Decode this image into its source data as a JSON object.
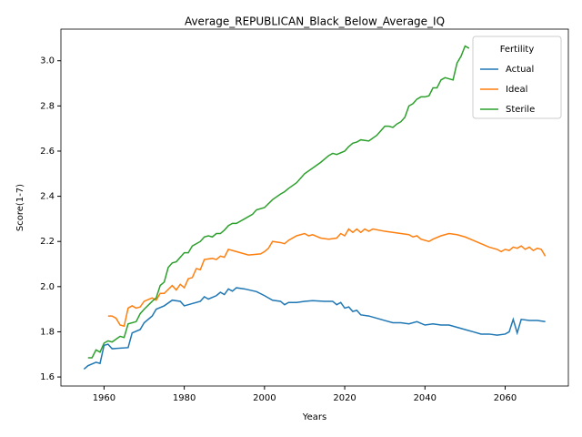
{
  "chart_data": {
    "type": "line",
    "title": "Average_REPUBLICAN_Black_Below_Average_IQ",
    "x_label": "Years",
    "y_label": "Score(1-7)",
    "legend_title": "Fertility",
    "legend": "upper right",
    "grid": false,
    "xlim": [
      1949.25,
      2075.75
    ],
    "xticks": [
      1960,
      1980,
      2000,
      2020,
      2040,
      2060
    ],
    "ylim": [
      1.56,
      3.14
    ],
    "yticks": [
      1.6,
      1.8,
      {
        "value": 2,
        "label": "2.0"
      },
      2.2,
      2.4,
      2.6,
      2.8,
      {
        "value": 3,
        "label": "3.0"
      }
    ],
    "series": [
      {
        "name": "Actual",
        "color": "#1f77b4",
        "x": [
          1955,
          1956,
          1958,
          1959,
          1960,
          1961,
          1962,
          1966,
          1967,
          1969,
          1970,
          1972,
          1973,
          1975,
          1977,
          1979,
          1980,
          1982,
          1984,
          1985,
          1986,
          1988,
          1989,
          1990,
          1991,
          1992,
          1993,
          1995,
          1998,
          2000,
          2002,
          2004,
          2005,
          2006,
          2008,
          2010,
          2012,
          2015,
          2017,
          2018,
          2019,
          2020,
          2021,
          2022,
          2023,
          2024,
          2026,
          2028,
          2030,
          2032,
          2034,
          2036,
          2038,
          2040,
          2042,
          2044,
          2046,
          2048,
          2050,
          2052,
          2054,
          2056,
          2058,
          2060,
          2061,
          2062,
          2063,
          2064,
          2066,
          2068,
          2070
        ],
        "values": [
          1.635,
          1.65,
          1.665,
          1.66,
          1.74,
          1.745,
          1.725,
          1.73,
          1.795,
          1.81,
          1.84,
          1.87,
          1.9,
          1.915,
          1.94,
          1.935,
          1.915,
          1.925,
          1.935,
          1.955,
          1.945,
          1.96,
          1.975,
          1.965,
          1.99,
          1.98,
          1.995,
          1.99,
          1.978,
          1.96,
          1.94,
          1.935,
          1.92,
          1.93,
          1.93,
          1.935,
          1.938,
          1.935,
          1.935,
          1.92,
          1.93,
          1.905,
          1.91,
          1.89,
          1.895,
          1.875,
          1.87,
          1.86,
          1.85,
          1.84,
          1.84,
          1.835,
          1.845,
          1.83,
          1.835,
          1.83,
          1.83,
          1.82,
          1.81,
          1.8,
          1.79,
          1.79,
          1.785,
          1.79,
          1.8,
          1.855,
          1.795,
          1.855,
          1.85,
          1.85,
          1.845
        ]
      },
      {
        "name": "Ideal",
        "color": "#ff7f0e",
        "x": [
          1961,
          1962,
          1963,
          1964,
          1965,
          1966,
          1967,
          1968,
          1969,
          1970,
          1972,
          1973,
          1974,
          1975,
          1977,
          1978,
          1979,
          1980,
          1981,
          1982,
          1983,
          1984,
          1985,
          1987,
          1988,
          1989,
          1990,
          1991,
          1993,
          1996,
          1999,
          2000,
          2001,
          2002,
          2004,
          2005,
          2006,
          2008,
          2010,
          2011,
          2012,
          2014,
          2016,
          2018,
          2019,
          2020,
          2021,
          2022,
          2023,
          2024,
          2025,
          2026,
          2027,
          2030,
          2032,
          2034,
          2036,
          2037,
          2038,
          2039,
          2041,
          2042,
          2044,
          2046,
          2048,
          2050,
          2052,
          2054,
          2056,
          2058,
          2059,
          2060,
          2061,
          2062,
          2063,
          2064,
          2065,
          2066,
          2067,
          2068,
          2069,
          2070
        ],
        "values": [
          1.87,
          1.87,
          1.86,
          1.83,
          1.825,
          1.905,
          1.915,
          1.905,
          1.91,
          1.935,
          1.95,
          1.94,
          1.97,
          1.97,
          2.005,
          1.985,
          2.01,
          1.995,
          2.035,
          2.04,
          2.08,
          2.075,
          2.12,
          2.125,
          2.12,
          2.135,
          2.13,
          2.165,
          2.155,
          2.14,
          2.145,
          2.155,
          2.17,
          2.2,
          2.195,
          2.19,
          2.205,
          2.225,
          2.235,
          2.225,
          2.23,
          2.215,
          2.21,
          2.215,
          2.235,
          2.225,
          2.255,
          2.24,
          2.255,
          2.24,
          2.255,
          2.245,
          2.255,
          2.245,
          2.24,
          2.235,
          2.23,
          2.22,
          2.225,
          2.21,
          2.2,
          2.21,
          2.225,
          2.235,
          2.23,
          2.22,
          2.205,
          2.19,
          2.175,
          2.165,
          2.155,
          2.165,
          2.16,
          2.175,
          2.17,
          2.18,
          2.165,
          2.175,
          2.16,
          2.17,
          2.165,
          2.135
        ]
      },
      {
        "name": "Sterile",
        "color": "#2ca02c",
        "x": [
          1956,
          1957,
          1958,
          1959,
          1960,
          1961,
          1962,
          1964,
          1965,
          1966,
          1968,
          1969,
          1970,
          1972,
          1973,
          1974,
          1975,
          1976,
          1977,
          1978,
          1980,
          1981,
          1982,
          1984,
          1985,
          1986,
          1987,
          1988,
          1989,
          1990,
          1991,
          1992,
          1993,
          1995,
          1997,
          1998,
          2000,
          2002,
          2004,
          2005,
          2006,
          2008,
          2010,
          2012,
          2014,
          2016,
          2017,
          2018,
          2020,
          2021,
          2022,
          2023,
          2024,
          2026,
          2028,
          2029,
          2030,
          2031,
          2032,
          2033,
          2034,
          2035,
          2036,
          2037,
          2038,
          2039,
          2040,
          2041,
          2042,
          2043,
          2044,
          2045,
          2046,
          2047,
          2048,
          2049,
          2050,
          2051
        ],
        "values": [
          1.685,
          1.685,
          1.72,
          1.71,
          1.75,
          1.76,
          1.755,
          1.78,
          1.775,
          1.835,
          1.845,
          1.88,
          1.9,
          1.935,
          1.95,
          2.005,
          2.02,
          2.085,
          2.105,
          2.11,
          2.15,
          2.15,
          2.18,
          2.2,
          2.22,
          2.225,
          2.22,
          2.235,
          2.235,
          2.25,
          2.27,
          2.28,
          2.28,
          2.3,
          2.32,
          2.34,
          2.35,
          2.385,
          2.41,
          2.42,
          2.435,
          2.46,
          2.5,
          2.525,
          2.55,
          2.58,
          2.59,
          2.585,
          2.6,
          2.62,
          2.635,
          2.64,
          2.65,
          2.645,
          2.67,
          2.69,
          2.71,
          2.71,
          2.705,
          2.72,
          2.73,
          2.75,
          2.8,
          2.81,
          2.83,
          2.84,
          2.84,
          2.845,
          2.88,
          2.88,
          2.915,
          2.925,
          2.92,
          2.915,
          2.99,
          3.02,
          3.065,
          3.055
        ]
      }
    ]
  }
}
